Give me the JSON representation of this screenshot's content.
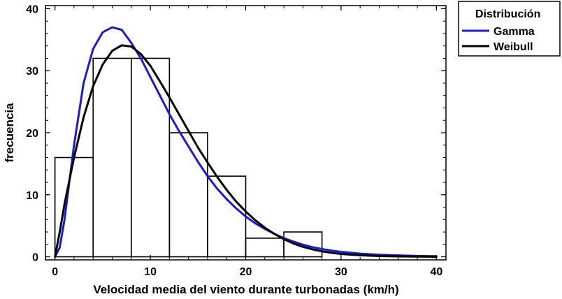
{
  "chart_data": {
    "type": "bar",
    "subtype": "histogram-with-fitted-distributions",
    "xlabel": "Velocidad media del viento durante turbonadas (km/h)",
    "ylabel": "frecuencia",
    "xlim": [
      -1,
      41
    ],
    "ylim": [
      -0.5,
      40.5
    ],
    "x_ticks": [
      0,
      10,
      20,
      30,
      40
    ],
    "y_ticks": [
      0,
      10,
      20,
      30,
      40
    ],
    "grid": false,
    "histogram": {
      "bin_edges": [
        0,
        4,
        8,
        12,
        16,
        20,
        24,
        28
      ],
      "values": [
        16,
        32,
        32,
        20,
        13,
        3,
        4
      ]
    },
    "legend": {
      "title": "Distribución",
      "placement": "outside-right-top"
    },
    "series": [
      {
        "name": "Gamma",
        "color": "#1a1adb",
        "x": [
          0,
          0.5,
          1,
          2,
          3,
          4,
          5,
          6,
          7,
          8,
          9,
          10,
          11,
          12,
          13,
          14,
          15,
          16,
          17,
          18,
          19,
          20,
          21,
          22,
          23,
          24,
          25,
          26,
          27,
          28,
          29,
          30,
          32,
          34,
          36,
          38,
          40
        ],
        "y": [
          0,
          1.5,
          6,
          18,
          28,
          33.5,
          36.2,
          37,
          36.6,
          34.5,
          32,
          29,
          26,
          23,
          20.3,
          17.8,
          15.3,
          13,
          11,
          9.3,
          7.8,
          6.5,
          5.4,
          4.5,
          3.7,
          3,
          2.45,
          1.95,
          1.55,
          1.25,
          1,
          0.8,
          0.5,
          0.33,
          0.22,
          0.14,
          0.09
        ]
      },
      {
        "name": "Weibull",
        "color": "#000000",
        "x": [
          0,
          0.5,
          1,
          2,
          3,
          4,
          5,
          6,
          7,
          8,
          9,
          10,
          11,
          12,
          13,
          14,
          15,
          16,
          17,
          18,
          19,
          20,
          21,
          22,
          23,
          24,
          25,
          26,
          27,
          28,
          29,
          30,
          32,
          34,
          36,
          38,
          40
        ],
        "y": [
          0,
          4,
          8.5,
          16,
          22.5,
          27.5,
          31,
          33.2,
          34.1,
          33.9,
          32.7,
          30.8,
          28.3,
          25.7,
          23,
          20.3,
          17.6,
          15.2,
          12.9,
          10.8,
          8.9,
          7.3,
          5.9,
          4.7,
          3.7,
          2.85,
          2.15,
          1.6,
          1.2,
          0.88,
          0.64,
          0.46,
          0.24,
          0.12,
          0.06,
          0.03,
          0.01
        ]
      }
    ]
  }
}
